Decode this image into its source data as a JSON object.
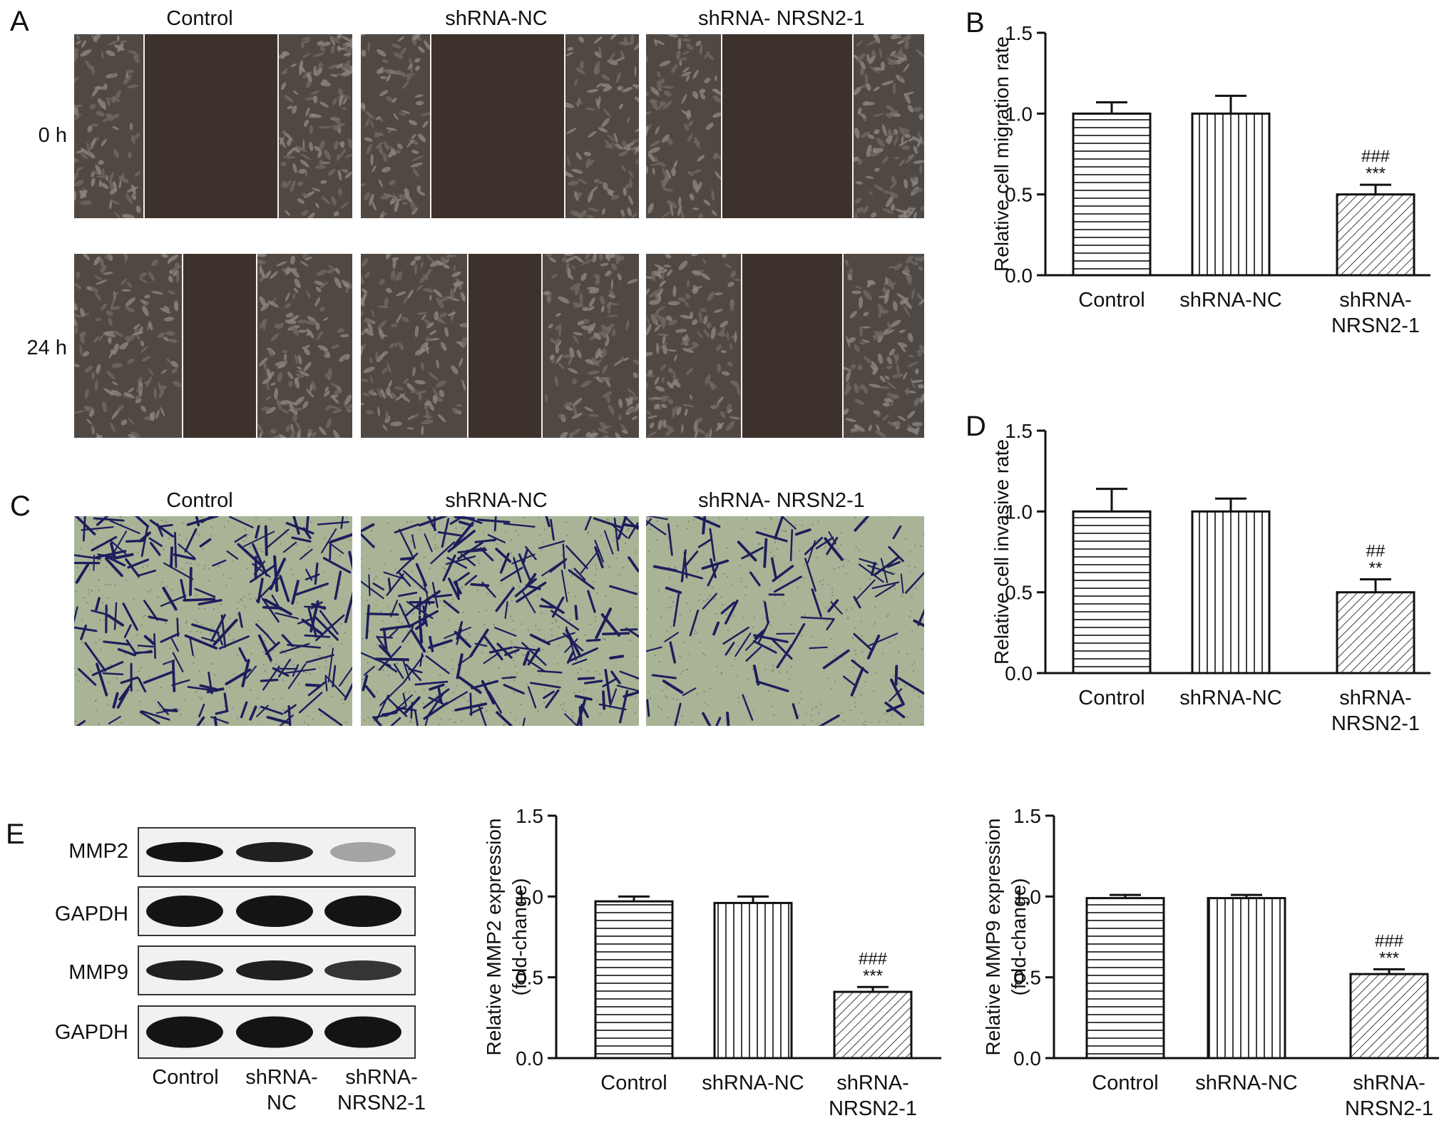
{
  "panel_letters": {
    "a": "A",
    "b": "B",
    "c": "C",
    "d": "D",
    "e": "E"
  },
  "groups": [
    "Control",
    "shRNA-NC",
    "shRNA- NRSN2-1"
  ],
  "panel_a": {
    "rows": [
      "0 h",
      "24 h"
    ]
  },
  "panel_e": {
    "proteins": [
      "MMP2",
      "GAPDH",
      "MMP9",
      "GAPDH"
    ],
    "lanes": [
      "Control",
      "shRNA-\nNC",
      "shRNA-\nNRSN2-1"
    ]
  },
  "colors": {
    "bar_fill": "#ffffff",
    "stroke": "#111111",
    "wound_dark": "#3c312b",
    "cell_texture": "#6e6863",
    "transwell_bg": "#a9b497",
    "stain": "#1f1d5c",
    "band": "#141414"
  },
  "chart_data": [
    {
      "id": "B",
      "type": "bar",
      "categories": [
        "Control",
        "shRNA-NC",
        "shRNA-\nNRSN2-1"
      ],
      "values": [
        1.0,
        1.0,
        0.5
      ],
      "errors": [
        0.07,
        0.11,
        0.06
      ],
      "annotations": [
        "",
        "",
        "###\n***"
      ],
      "fill_patterns": [
        "horizontal-lines",
        "vertical-lines",
        "diagonal-lines"
      ],
      "ylabel": "Relative cell migration rate",
      "ylim": [
        0,
        1.5
      ],
      "yticks": [
        "0.0",
        "0.5",
        "1.0",
        "1.5"
      ]
    },
    {
      "id": "D",
      "type": "bar",
      "categories": [
        "Control",
        "shRNA-NC",
        "shRNA-\nNRSN2-1"
      ],
      "values": [
        1.0,
        1.0,
        0.5
      ],
      "errors": [
        0.14,
        0.08,
        0.08
      ],
      "annotations": [
        "",
        "",
        "##\n**"
      ],
      "fill_patterns": [
        "horizontal-lines",
        "vertical-lines",
        "diagonal-lines"
      ],
      "ylabel": "Relative cell invasive rate",
      "ylim": [
        0,
        1.5
      ],
      "yticks": [
        "0.0",
        "0.5",
        "1.0",
        "1.5"
      ]
    },
    {
      "id": "E-MMP2",
      "type": "bar",
      "categories": [
        "Control",
        "shRNA-NC",
        "shRNA-\nNRSN2-1"
      ],
      "values": [
        0.97,
        0.96,
        0.41
      ],
      "errors": [
        0.03,
        0.04,
        0.03
      ],
      "annotations": [
        "",
        "",
        "###\n***"
      ],
      "fill_patterns": [
        "horizontal-lines",
        "vertical-lines",
        "diagonal-lines"
      ],
      "ylabel": "Relative MMP2 expression\n(fold-change)",
      "ylim": [
        0,
        1.5
      ],
      "yticks": [
        "0.0",
        "0.5",
        "1.0",
        "1.5"
      ]
    },
    {
      "id": "E-MMP9",
      "type": "bar",
      "categories": [
        "Control",
        "shRNA-NC",
        "shRNA-\nNRSN2-1"
      ],
      "values": [
        0.99,
        0.99,
        0.52
      ],
      "errors": [
        0.02,
        0.02,
        0.03
      ],
      "annotations": [
        "",
        "",
        "###\n***"
      ],
      "fill_patterns": [
        "horizontal-lines",
        "vertical-lines",
        "diagonal-lines"
      ],
      "ylabel": "Relative MMP9 expression\n(fold-change)",
      "ylim": [
        0,
        1.5
      ],
      "yticks": [
        "0.0",
        "0.5",
        "1.0",
        "1.5"
      ]
    }
  ]
}
